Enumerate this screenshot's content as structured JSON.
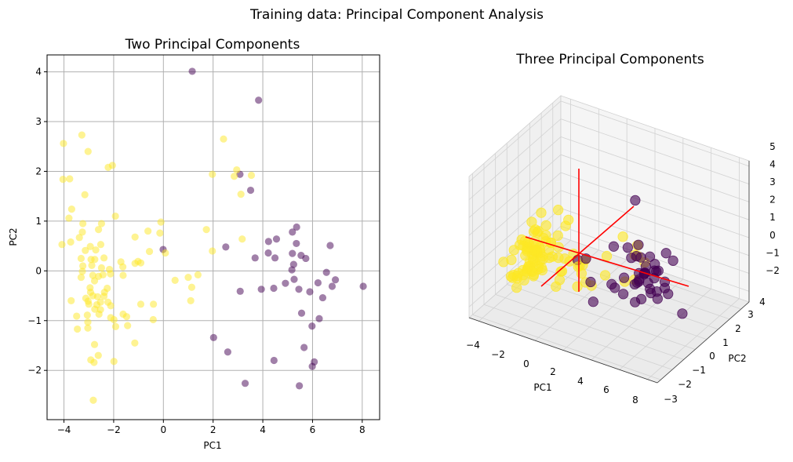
{
  "suptitle": "Training data: Principal Component Analysis",
  "colors": {
    "class_0": "#440154",
    "class_1": "#fde725",
    "axes_lines": "#ff0000",
    "grid": "#b0b0b0"
  },
  "chart_data": [
    {
      "type": "scatter",
      "title": "Two Principal Components",
      "xlabel": "PC1",
      "ylabel": "PC2",
      "xlim": [
        -4.68,
        8.7
      ],
      "ylim": [
        -2.99,
        4.34
      ],
      "xticks": [
        -4,
        -2,
        0,
        2,
        4,
        6,
        8
      ],
      "yticks": [
        -2,
        -1,
        0,
        1,
        2,
        3,
        4
      ],
      "grid": true,
      "series": [
        {
          "color": "#440154",
          "points": [
            [
              1.16,
              4.01
            ],
            [
              3.83,
              3.43
            ],
            [
              3.08,
              1.94
            ],
            [
              3.51,
              1.62
            ],
            [
              5.36,
              0.88
            ],
            [
              5.19,
              0.78
            ],
            [
              4.23,
              0.59
            ],
            [
              4.55,
              0.64
            ],
            [
              5.35,
              0.55
            ],
            [
              6.71,
              0.51
            ],
            [
              2.51,
              0.48
            ],
            [
              -0.01,
              0.43
            ],
            [
              3.69,
              0.26
            ],
            [
              4.22,
              0.36
            ],
            [
              4.49,
              0.26
            ],
            [
              5.19,
              0.35
            ],
            [
              5.54,
              0.31
            ],
            [
              5.73,
              0.25
            ],
            [
              5.24,
              0.13
            ],
            [
              5.17,
              0.02
            ],
            [
              6.56,
              -0.03
            ],
            [
              5.26,
              -0.17
            ],
            [
              4.91,
              -0.25
            ],
            [
              6.22,
              -0.24
            ],
            [
              6.92,
              -0.18
            ],
            [
              6.79,
              -0.31
            ],
            [
              8.04,
              -0.31
            ],
            [
              3.09,
              -0.41
            ],
            [
              3.94,
              -0.37
            ],
            [
              4.44,
              -0.35
            ],
            [
              5.45,
              -0.37
            ],
            [
              5.89,
              -0.42
            ],
            [
              6.41,
              -0.54
            ],
            [
              5.56,
              -0.85
            ],
            [
              6.27,
              -0.96
            ],
            [
              5.98,
              -1.11
            ],
            [
              2.02,
              -1.34
            ],
            [
              2.59,
              -1.63
            ],
            [
              5.66,
              -1.54
            ],
            [
              4.45,
              -1.8
            ],
            [
              6.07,
              -1.83
            ],
            [
              5.99,
              -1.92
            ],
            [
              3.29,
              -2.26
            ],
            [
              5.47,
              -2.31
            ]
          ]
        },
        {
          "color": "#fde725",
          "points": [
            [
              2.42,
              2.65
            ],
            [
              1.97,
              1.94
            ],
            [
              2.95,
              2.03
            ],
            [
              2.85,
              1.9
            ],
            [
              3.54,
              1.92
            ],
            [
              3.12,
              1.54
            ],
            [
              1.73,
              0.83
            ],
            [
              3.17,
              0.64
            ],
            [
              1.97,
              0.4
            ],
            [
              -3.28,
              2.73
            ],
            [
              -4.02,
              2.56
            ],
            [
              -3.03,
              2.4
            ],
            [
              -2.22,
              2.08
            ],
            [
              -2.05,
              2.12
            ],
            [
              -4.04,
              1.84
            ],
            [
              -3.77,
              1.85
            ],
            [
              -3.16,
              1.53
            ],
            [
              -3.69,
              1.24
            ],
            [
              -3.8,
              1.06
            ],
            [
              -1.93,
              1.1
            ],
            [
              -3.24,
              0.95
            ],
            [
              -2.49,
              0.95
            ],
            [
              -0.1,
              0.98
            ],
            [
              -3.26,
              0.78
            ],
            [
              -2.61,
              0.83
            ],
            [
              -0.62,
              0.8
            ],
            [
              -0.14,
              0.76
            ],
            [
              -3.38,
              0.67
            ],
            [
              -4.08,
              0.53
            ],
            [
              -3.73,
              0.58
            ],
            [
              -1.14,
              0.68
            ],
            [
              -2.94,
              0.49
            ],
            [
              -2.52,
              0.53
            ],
            [
              -3.14,
              0.41
            ],
            [
              -2.72,
              0.42
            ],
            [
              -0.56,
              0.39
            ],
            [
              0.08,
              0.36
            ],
            [
              -3.31,
              0.25
            ],
            [
              -2.91,
              0.23
            ],
            [
              -2.76,
              0.23
            ],
            [
              -2.39,
              0.26
            ],
            [
              -1.71,
              0.18
            ],
            [
              -1.14,
              0.15
            ],
            [
              -1.02,
              0.19
            ],
            [
              -0.91,
              0.16
            ],
            [
              -1.63,
              0.08
            ],
            [
              -3.24,
              0.1
            ],
            [
              -2.88,
              0.11
            ],
            [
              -2.49,
              0.06
            ],
            [
              -2.17,
              0.03
            ],
            [
              -3.26,
              -0.01
            ],
            [
              -2.13,
              -0.06
            ],
            [
              -3.31,
              -0.13
            ],
            [
              -2.84,
              -0.09
            ],
            [
              -2.61,
              -0.11
            ],
            [
              -2.43,
              -0.08
            ],
            [
              -1.62,
              -0.09
            ],
            [
              -2.77,
              -0.2
            ],
            [
              0.47,
              -0.19
            ],
            [
              1.0,
              -0.13
            ],
            [
              1.39,
              -0.08
            ],
            [
              1.14,
              -0.33
            ],
            [
              -2.95,
              -0.34
            ],
            [
              -2.26,
              -0.35
            ],
            [
              -2.93,
              -0.43
            ],
            [
              -2.37,
              -0.43
            ],
            [
              -2.84,
              -0.5
            ],
            [
              -2.65,
              -0.52
            ],
            [
              -2.39,
              -0.51
            ],
            [
              -3.12,
              -0.55
            ],
            [
              -3.71,
              -0.6
            ],
            [
              -3.03,
              -0.61
            ],
            [
              -2.53,
              -0.63
            ],
            [
              -2.23,
              -0.63
            ],
            [
              1.1,
              -0.6
            ],
            [
              -3.0,
              -0.67
            ],
            [
              -2.68,
              -0.68
            ],
            [
              -2.12,
              -0.7
            ],
            [
              -0.91,
              -0.67
            ],
            [
              -0.4,
              -0.67
            ],
            [
              -2.76,
              -0.77
            ],
            [
              -2.53,
              -0.78
            ],
            [
              -2.59,
              -0.87
            ],
            [
              -1.62,
              -0.87
            ],
            [
              -1.48,
              -0.92
            ],
            [
              -3.49,
              -0.91
            ],
            [
              -3.06,
              -0.89
            ],
            [
              -3.04,
              -1.03
            ],
            [
              -2.12,
              -0.94
            ],
            [
              -1.99,
              -0.98
            ],
            [
              -0.41,
              -0.98
            ],
            [
              -3.46,
              -1.17
            ],
            [
              -3.04,
              -1.15
            ],
            [
              -1.92,
              -1.12
            ],
            [
              -1.44,
              -1.1
            ],
            [
              -2.77,
              -1.48
            ],
            [
              -1.15,
              -1.45
            ],
            [
              -2.62,
              -1.7
            ],
            [
              -2.92,
              -1.79
            ],
            [
              -2.79,
              -1.84
            ],
            [
              -1.99,
              -1.82
            ],
            [
              -2.82,
              -2.6
            ]
          ]
        }
      ]
    },
    {
      "type": "scatter",
      "title": "Three Principal Components",
      "xlabel": "PC1",
      "ylabel": "PC2",
      "zlabel": "",
      "xlim": [
        -4.7,
        8.7
      ],
      "ylim": [
        -3.3,
        4.7
      ],
      "zlim": [
        -2.6,
        5.3
      ],
      "xticks": [
        -4,
        -2,
        0,
        2,
        4,
        6,
        8
      ],
      "yticks": [
        -3,
        -2,
        -1,
        0,
        1,
        2,
        3,
        4
      ],
      "zticks": [
        -2,
        -1,
        0,
        1,
        2,
        3,
        4,
        5
      ],
      "grid": true,
      "note_series": "same PC1/PC2 points as left panel, shown in 3D with principal axes drawn in red"
    }
  ]
}
